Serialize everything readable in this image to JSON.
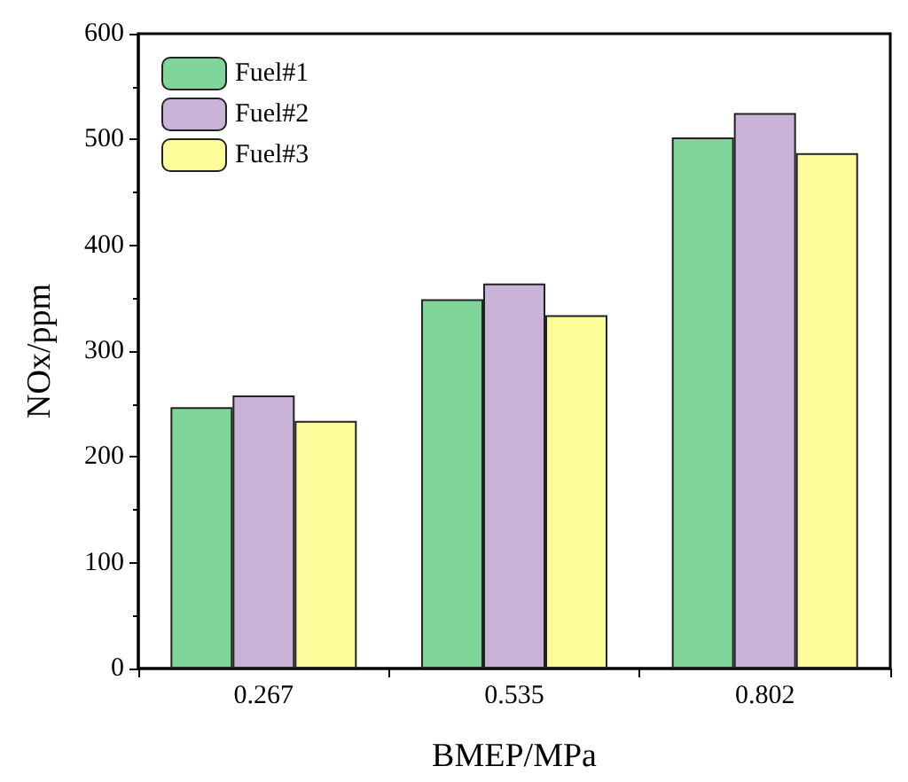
{
  "chart_data": {
    "type": "bar",
    "xlabel": "BMEP/MPa",
    "ylabel": "NOx/ppm",
    "categories": [
      "0.267",
      "0.535",
      "0.802"
    ],
    "series": [
      {
        "name": "Fuel#1",
        "color": "#80d59b",
        "values": [
          247,
          349,
          502
        ]
      },
      {
        "name": "Fuel#2",
        "color": "#c9b3d6",
        "values": [
          258,
          364,
          525
        ]
      },
      {
        "name": "Fuel#3",
        "color": "#fdfc9a",
        "values": [
          234,
          334,
          487
        ]
      }
    ],
    "ylim": [
      0,
      600
    ],
    "yticks": [
      0,
      100,
      200,
      300,
      400,
      500,
      600
    ],
    "grid": false,
    "legend": "top left"
  }
}
